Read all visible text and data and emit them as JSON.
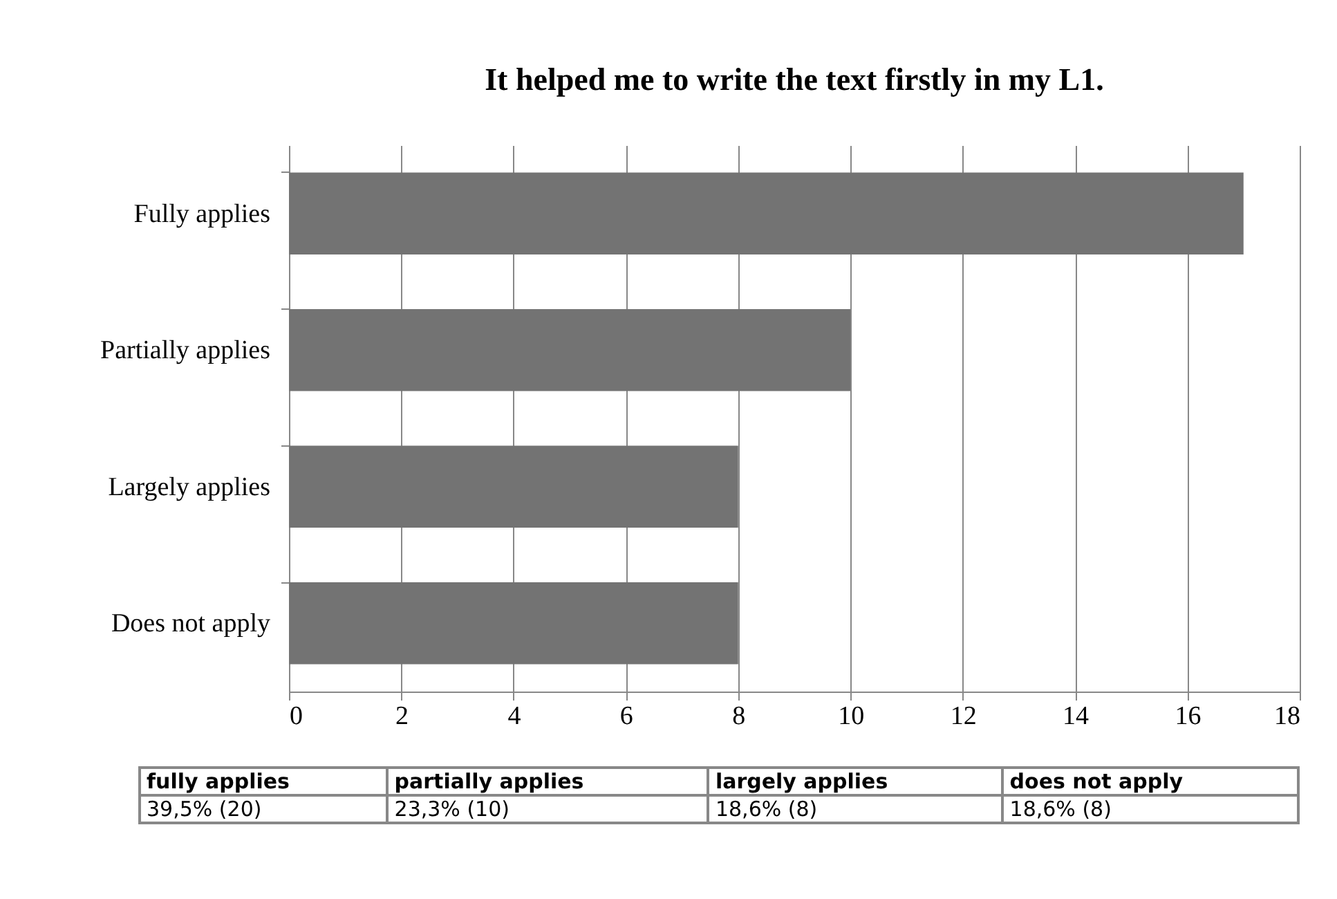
{
  "chart_data": {
    "type": "bar",
    "orientation": "horizontal",
    "title": "It helped me to write the text firstly in my L1.",
    "categories": [
      "Fully applies",
      "Partially applies",
      "Largely applies",
      "Does not apply"
    ],
    "values": [
      17,
      10,
      8,
      8
    ],
    "color": "#737373",
    "xlim": [
      0,
      18
    ],
    "xticks": [
      0,
      2,
      4,
      6,
      8,
      10,
      12,
      14,
      16,
      18
    ],
    "grid": "x",
    "annotations": [
      "fully applies",
      "partially applies",
      "largely applies",
      "does not apply",
      "39,5% (20)",
      "23,3% (10)",
      "18,6% (8)",
      "18,6% (8)"
    ]
  }
}
